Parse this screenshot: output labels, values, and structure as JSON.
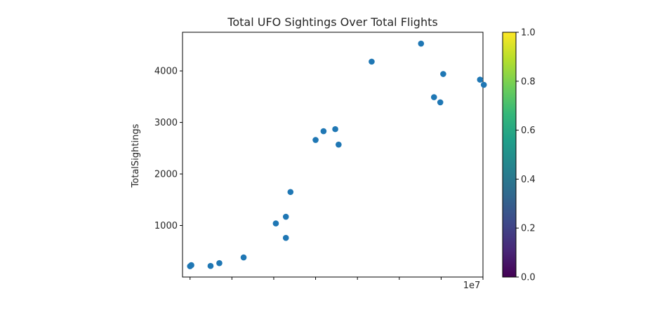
{
  "chart_data": [
    {
      "type": "scatter",
      "title": "Total UFO Sightings Over Total Flights",
      "xlabel": "",
      "ylabel": "TotalSightings",
      "x_offset_label": "1e7",
      "xlim": [
        0.032,
        0.75
      ],
      "ylim": [
        0,
        4750
      ],
      "y_ticks": [
        1000,
        2000,
        3000,
        4000
      ],
      "x_ticks": [
        0.05,
        0.15,
        0.25,
        0.35,
        0.45,
        0.55,
        0.65,
        0.75
      ],
      "grid": false,
      "marker_color": "#1f77b4",
      "points": [
        {
          "x": 0.05,
          "y": 210
        },
        {
          "x": 0.053,
          "y": 230
        },
        {
          "x": 0.099,
          "y": 215
        },
        {
          "x": 0.12,
          "y": 270
        },
        {
          "x": 0.178,
          "y": 380
        },
        {
          "x": 0.255,
          "y": 1040
        },
        {
          "x": 0.279,
          "y": 760
        },
        {
          "x": 0.279,
          "y": 1170
        },
        {
          "x": 0.29,
          "y": 1650
        },
        {
          "x": 0.35,
          "y": 2660
        },
        {
          "x": 0.369,
          "y": 2830
        },
        {
          "x": 0.397,
          "y": 2870
        },
        {
          "x": 0.405,
          "y": 2570
        },
        {
          "x": 0.484,
          "y": 4180
        },
        {
          "x": 0.602,
          "y": 4530
        },
        {
          "x": 0.633,
          "y": 3490
        },
        {
          "x": 0.648,
          "y": 3390
        },
        {
          "x": 0.655,
          "y": 3940
        },
        {
          "x": 0.743,
          "y": 3830
        },
        {
          "x": 0.752,
          "y": 3730
        }
      ]
    },
    {
      "type": "colorbar",
      "colormap": "viridis",
      "range": [
        0.0,
        1.0
      ],
      "tick_labels": [
        "0.0",
        "0.2",
        "0.4",
        "0.6",
        "0.8",
        "1.0"
      ],
      "colors": [
        "#440154",
        "#482878",
        "#3e4989",
        "#31688e",
        "#26828e",
        "#1f9e89",
        "#35b779",
        "#6ece58",
        "#b5de2b",
        "#fde725"
      ]
    }
  ]
}
